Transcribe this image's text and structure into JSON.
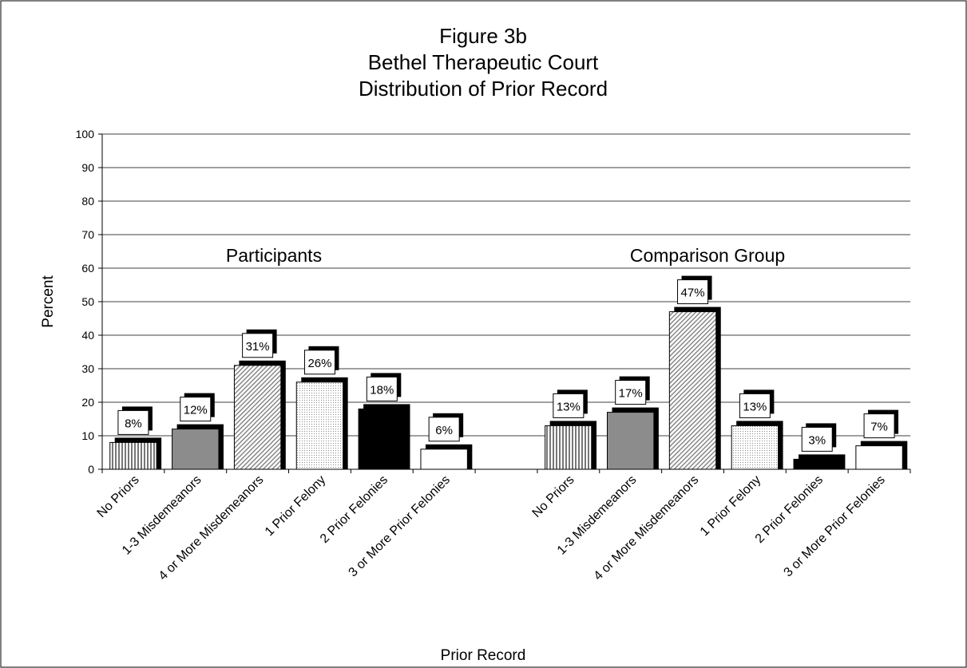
{
  "chart_data": {
    "type": "bar",
    "title": [
      "Figure 3b",
      "Bethel Therapeutic Court",
      "Distribution of Prior Record"
    ],
    "xlabel": "Prior Record",
    "ylabel": "Percent",
    "annotations": [
      "Participants",
      "Comparison Group"
    ],
    "categories": [
      "No Priors",
      "1-3 Misdemeanors",
      "4 or More Misdemeanors",
      "1 Prior Felony",
      "2 Prior Felonies",
      "3 or More Prior Felonies",
      null,
      "No Priors",
      "1-3 Misdemeanors",
      "4 or More Misdemeanors",
      "1 Prior Felony",
      "2 Prior Felonies",
      "3 or More Prior Felonies"
    ],
    "values": [
      8,
      12,
      31,
      26,
      18,
      6,
      null,
      13,
      17,
      47,
      13,
      3,
      7
    ],
    "value_labels": [
      "8%",
      "12%",
      "31%",
      "26%",
      "18%",
      "6%",
      null,
      "13%",
      "17%",
      "47%",
      "13%",
      "3%",
      "7%"
    ],
    "colors": [
      "#d0d0d0",
      "#8c8c8c",
      "#c8c8c8",
      "#ececec",
      "#000000",
      "#ffffff",
      null,
      "#d0d0d0",
      "#8c8c8c",
      "#c8c8c8",
      "#ececec",
      "#000000",
      "#ffffff"
    ],
    "ylim": [
      0,
      100
    ],
    "yticks": [
      0,
      10,
      20,
      30,
      40,
      50,
      60,
      70,
      80,
      90,
      100
    ],
    "grid": true
  }
}
